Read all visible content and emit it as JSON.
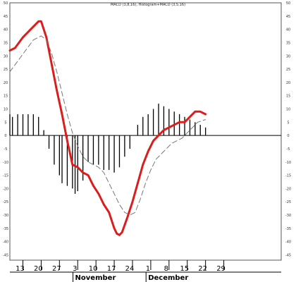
{
  "chart_data": {
    "type": "line",
    "title": "MACD (3,8,16), Histogram+MACD (3,5,16)",
    "legend": "none",
    "grid": false,
    "xlim": [
      0,
      104
    ],
    "ylim": [
      -47,
      50
    ],
    "y_ticks": [
      50,
      45,
      40,
      35,
      30,
      25,
      20,
      15,
      10,
      5,
      0,
      -5,
      -10,
      -15,
      -20,
      -25,
      -30,
      -35,
      -40,
      -45
    ],
    "x_ticks": [
      {
        "x": 5,
        "label": "13"
      },
      {
        "x": 12,
        "label": "20"
      },
      {
        "x": 19,
        "label": "27"
      },
      {
        "x": 26,
        "label": "3"
      },
      {
        "x": 33,
        "label": "10"
      },
      {
        "x": 40,
        "label": "17"
      },
      {
        "x": 47,
        "label": "24"
      },
      {
        "x": 54,
        "label": "1"
      },
      {
        "x": 61,
        "label": "8"
      },
      {
        "x": 68,
        "label": "15"
      },
      {
        "x": 75,
        "label": "22"
      },
      {
        "x": 82,
        "label": "29"
      }
    ],
    "months": [
      {
        "x": 25,
        "label": "November"
      },
      {
        "x": 53,
        "label": "December"
      }
    ],
    "series": [
      {
        "role": "macd",
        "color": "#dd1c1c",
        "style": "solid-thick",
        "points": [
          [
            0,
            32
          ],
          [
            2,
            33
          ],
          [
            5,
            37
          ],
          [
            8,
            40
          ],
          [
            11,
            43
          ],
          [
            12,
            43
          ],
          [
            14,
            37
          ],
          [
            16,
            27
          ],
          [
            18,
            17
          ],
          [
            20,
            8
          ],
          [
            22,
            -2
          ],
          [
            24,
            -11
          ],
          [
            26,
            -12
          ],
          [
            28,
            -14
          ],
          [
            30,
            -15
          ],
          [
            32,
            -19
          ],
          [
            34,
            -22
          ],
          [
            36,
            -26
          ],
          [
            38,
            -29
          ],
          [
            40,
            -35
          ],
          [
            41,
            -37
          ],
          [
            42,
            -37.5
          ],
          [
            43,
            -36.5
          ],
          [
            45,
            -31
          ],
          [
            47,
            -25
          ],
          [
            49,
            -18
          ],
          [
            51,
            -11
          ],
          [
            53,
            -6
          ],
          [
            55,
            -2
          ],
          [
            57,
            0
          ],
          [
            59,
            2
          ],
          [
            61,
            3
          ],
          [
            63,
            4
          ],
          [
            65,
            5
          ],
          [
            67,
            5
          ],
          [
            69,
            7
          ],
          [
            71,
            9
          ],
          [
            73,
            9
          ],
          [
            75,
            8
          ]
        ]
      },
      {
        "role": "signal",
        "color": "#777777",
        "style": "dashed",
        "points": [
          [
            0,
            24
          ],
          [
            3,
            28
          ],
          [
            6,
            32
          ],
          [
            9,
            36
          ],
          [
            12,
            37.5
          ],
          [
            14,
            36
          ],
          [
            16,
            31
          ],
          [
            18,
            24
          ],
          [
            20,
            16
          ],
          [
            22,
            8
          ],
          [
            24,
            1
          ],
          [
            26,
            -4
          ],
          [
            28,
            -8
          ],
          [
            30,
            -10
          ],
          [
            32,
            -11
          ],
          [
            34,
            -12
          ],
          [
            36,
            -14
          ],
          [
            38,
            -18
          ],
          [
            40,
            -22
          ],
          [
            42,
            -26
          ],
          [
            44,
            -29
          ],
          [
            46,
            -30
          ],
          [
            48,
            -29
          ],
          [
            50,
            -24
          ],
          [
            52,
            -18
          ],
          [
            54,
            -13
          ],
          [
            56,
            -9
          ],
          [
            58,
            -7
          ],
          [
            60,
            -5
          ],
          [
            62,
            -3
          ],
          [
            64,
            -2
          ],
          [
            66,
            -1
          ],
          [
            68,
            1
          ],
          [
            70,
            3
          ],
          [
            72,
            5
          ],
          [
            75,
            6
          ]
        ]
      },
      {
        "role": "histogram",
        "color": "#000000",
        "style": "bars",
        "points": [
          [
            0,
            8
          ],
          [
            1,
            7
          ],
          [
            3,
            8
          ],
          [
            5,
            8
          ],
          [
            7,
            8
          ],
          [
            9,
            8
          ],
          [
            11,
            7
          ],
          [
            13,
            2
          ],
          [
            15,
            -5
          ],
          [
            17,
            -11
          ],
          [
            19,
            -15
          ],
          [
            20,
            -18
          ],
          [
            22,
            -19
          ],
          [
            24,
            -20
          ],
          [
            25,
            -22
          ],
          [
            26,
            -21
          ],
          [
            28,
            -17
          ],
          [
            30,
            -10
          ],
          [
            32,
            -11
          ],
          [
            34,
            -11
          ],
          [
            36,
            -13
          ],
          [
            38,
            -13
          ],
          [
            40,
            -14
          ],
          [
            42,
            -12
          ],
          [
            44,
            -8
          ],
          [
            46,
            -5
          ],
          [
            49,
            4
          ],
          [
            51,
            7
          ],
          [
            53,
            8
          ],
          [
            55,
            10
          ],
          [
            57,
            12
          ],
          [
            59,
            11
          ],
          [
            61,
            10
          ],
          [
            63,
            9
          ],
          [
            65,
            8
          ],
          [
            67,
            7
          ],
          [
            69,
            6
          ],
          [
            71,
            5
          ],
          [
            73,
            4
          ],
          [
            75,
            3
          ]
        ]
      }
    ]
  }
}
